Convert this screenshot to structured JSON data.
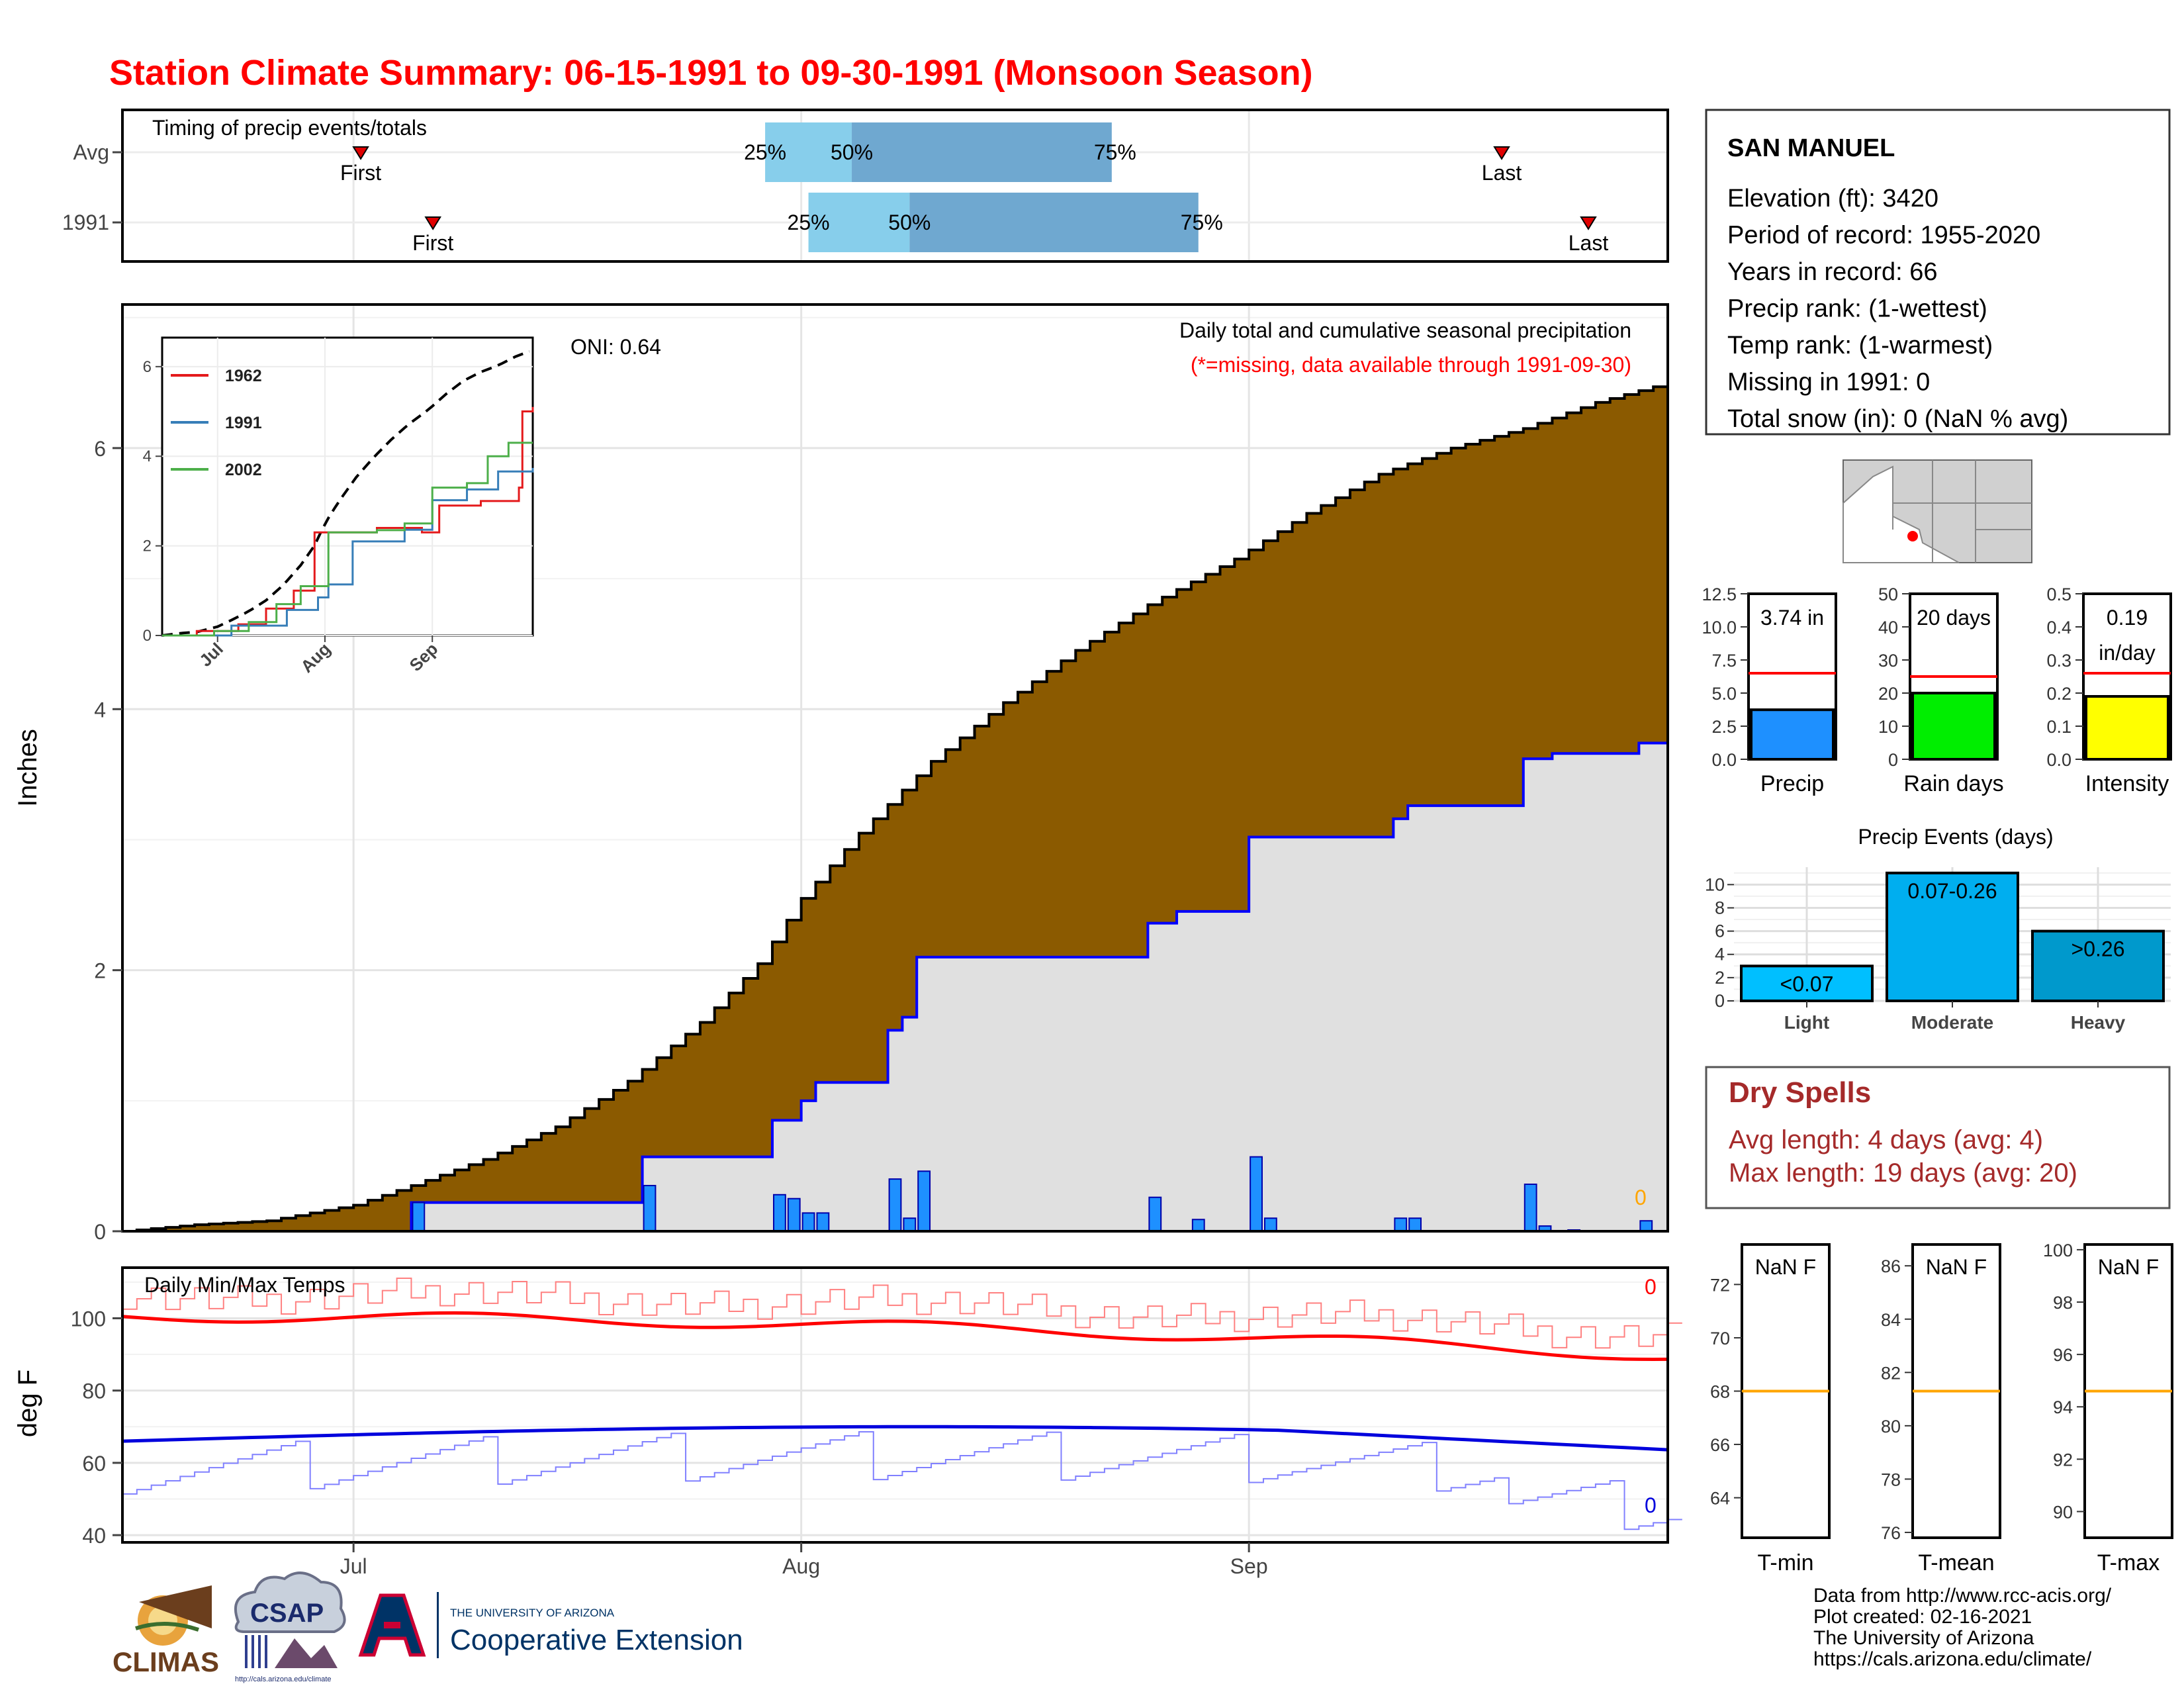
{
  "title": "Station Climate Summary: 06-15-1991 to 09-30-1991 (Monsoon Season)",
  "timing": {
    "panel_label": "Timing of precip events/totals",
    "rows": [
      {
        "label": "Avg",
        "first": "07-01",
        "q25": "07-29",
        "q50": "08-04",
        "q75": "08-22",
        "last": "09-18"
      },
      {
        "label": "1991",
        "first": "07-06",
        "q25": "08-01",
        "q50": "08-08",
        "q75": "08-28",
        "last": "09-24"
      }
    ],
    "first_label": "First",
    "last_label": "Last",
    "q25_label": "25%",
    "q50_label": "50%",
    "q75_label": "75%",
    "colors": {
      "light": "#87ceeb",
      "dark": "#6fa8d0",
      "marker": "#e00000"
    }
  },
  "precip_panel": {
    "ylabel": "Inches",
    "title": "Daily total and cumulative seasonal precipitation",
    "subtitle": "(*=missing, data available through 1991-09-30)",
    "oni": "ONI: 0.64",
    "missing_count": "0",
    "ylim": [
      0,
      7.1
    ],
    "yticks": [
      "0",
      "2",
      "4",
      "6"
    ],
    "colors": {
      "avg_fill": "#8b5a00",
      "obs_fill": "#e0e0e0",
      "obs_line": "#0000ff",
      "bar": "#1e90ff"
    }
  },
  "inset": {
    "yticks": [
      "0",
      "2",
      "4",
      "6"
    ],
    "xticks": [
      "Jul",
      "Aug",
      "Sep"
    ],
    "legend": [
      {
        "name": "1962",
        "color": "#e41a1c"
      },
      {
        "name": "1991",
        "color": "#377eb8"
      },
      {
        "name": "2002",
        "color": "#4daf4a"
      }
    ]
  },
  "temp_panel": {
    "ylabel": "deg F",
    "title": "Daily Min/Max Temps",
    "missing_max": "0",
    "missing_min": "0",
    "yticks": [
      "40",
      "60",
      "80",
      "100"
    ],
    "ylim": [
      38,
      114
    ],
    "colors": {
      "max_avg": "#ff0000",
      "min_avg": "#0000dd",
      "max_obs": "#ff8080",
      "min_obs": "#8080ff"
    }
  },
  "xaxis": {
    "ticks": [
      "Jul",
      "Aug",
      "Sep"
    ]
  },
  "station": {
    "name": "SAN MANUEL",
    "lines": [
      "Elevation (ft): 3420",
      "Period of record: 1955-2020",
      "Years in record: 66",
      "Precip rank:  (1-wettest)",
      "Temp rank:  (1-warmest)",
      "Missing in 1991: 0",
      "Total snow (in): 0 (NaN % avg)"
    ]
  },
  "mini_bars": [
    {
      "label": "Precip",
      "value_text": "3.74 in",
      "value": 3.74,
      "avg": 6.5,
      "ymax": 12.5,
      "ticks": [
        "0.0",
        "2.5",
        "5.0",
        "7.5",
        "10.0",
        "12.5"
      ],
      "color": "#1e90ff"
    },
    {
      "label": "Rain days",
      "value_text": "20 days",
      "value": 20,
      "avg": 25,
      "ymax": 50,
      "ticks": [
        "0",
        "10",
        "20",
        "30",
        "40",
        "50"
      ],
      "color": "#00ee00"
    },
    {
      "label": "Intensity",
      "value_text": "0.19",
      "value_text2": "in/day",
      "value": 0.19,
      "avg": 0.26,
      "ymax": 0.5,
      "ticks": [
        "0.0",
        "0.1",
        "0.2",
        "0.3",
        "0.4",
        "0.5"
      ],
      "color": "#ffff00"
    }
  ],
  "precip_events": {
    "title": "Precip Events (days)",
    "ymax": 11.5,
    "ticks": [
      "0",
      "2",
      "4",
      "6",
      "8",
      "10"
    ],
    "bars": [
      {
        "category": "Light",
        "label": "<0.07",
        "value": 3,
        "color": "#00bfff"
      },
      {
        "category": "Moderate",
        "label": "0.07-0.26",
        "value": 11,
        "color": "#00aeef"
      },
      {
        "category": "Heavy",
        "label": ">0.26",
        "value": 6,
        "color": "#0099cc"
      }
    ]
  },
  "dry_spells": {
    "title": "Dry Spells",
    "avg_length": "Avg length: 4 days (avg: 4)",
    "max_length": "Max length: 19 days (avg: 20)",
    "color": "#a52a2a"
  },
  "temp_boxes": [
    {
      "label": "T-min",
      "value_text": "NaN F",
      "ticks": [
        "64",
        "66",
        "68",
        "70",
        "72"
      ],
      "tmin": 62.5,
      "tmax": 73.5,
      "avg": 68
    },
    {
      "label": "T-mean",
      "value_text": "NaN F",
      "ticks": [
        "76",
        "78",
        "80",
        "82",
        "84",
        "86"
      ],
      "tmin": 75.8,
      "tmax": 86.8,
      "avg": 81.3
    },
    {
      "label": "T-max",
      "value_text": "NaN F",
      "ticks": [
        "90",
        "92",
        "94",
        "96",
        "98",
        "100"
      ],
      "tmin": 89,
      "tmax": 100.2,
      "avg": 94.6
    }
  ],
  "footer": {
    "lines": [
      "Data from http://www.rcc-acis.org/",
      "Plot created: 02-16-2021",
      "The University of Arizona",
      "https://cals.arizona.edu/climate/"
    ],
    "logo_climas": "CLIMAS",
    "logo_csap": "CSAP",
    "logo_csap_url": "http://cals.arizona.edu/climate",
    "logo_ua_small": "THE UNIVERSITY OF ARIZONA",
    "logo_ua_big": "Cooperative Extension"
  },
  "chart_data": {
    "type": "area",
    "title": "Daily total and cumulative seasonal precipitation",
    "ylabel": "Inches",
    "ylim": [
      0,
      7.1
    ],
    "x_range": [
      "06-15",
      "09-30"
    ],
    "avg_cumulative": {
      "dates": [
        "06-15",
        "06-20",
        "06-25",
        "07-01",
        "07-05",
        "07-10",
        "07-15",
        "07-20",
        "07-25",
        "07-29",
        "08-01",
        "08-05",
        "08-10",
        "08-15",
        "08-20",
        "08-25",
        "08-31",
        "09-05",
        "09-10",
        "09-15",
        "09-20",
        "09-25",
        "09-30"
      ],
      "values": [
        0.0,
        0.05,
        0.08,
        0.2,
        0.35,
        0.55,
        0.8,
        1.15,
        1.6,
        2.05,
        2.55,
        3.05,
        3.6,
        4.05,
        4.45,
        4.8,
        5.15,
        5.5,
        5.8,
        6.0,
        6.15,
        6.35,
        6.5
      ]
    },
    "obs_1991_cumulative": {
      "dates": [
        "06-15",
        "07-04",
        "07-05",
        "07-20",
        "07-21",
        "07-29",
        "07-30",
        "08-01",
        "08-02",
        "08-03",
        "08-07",
        "08-08",
        "08-09",
        "08-14",
        "08-24",
        "08-25",
        "08-27",
        "08-28",
        "09-01",
        "09-02",
        "09-11",
        "09-12",
        "09-19",
        "09-20",
        "09-22",
        "09-23",
        "09-28",
        "09-30"
      ],
      "values": [
        0.0,
        0.0,
        0.22,
        0.22,
        0.57,
        0.57,
        0.85,
        1.0,
        1.14,
        1.14,
        1.54,
        1.64,
        2.1,
        2.1,
        2.1,
        2.36,
        2.45,
        2.45,
        3.02,
        3.02,
        3.16,
        3.26,
        3.26,
        3.62,
        3.66,
        3.66,
        3.74,
        3.74
      ]
    },
    "daily_1991": {
      "dates": [
        "07-05",
        "07-21",
        "07-30",
        "07-31",
        "08-01",
        "08-02",
        "08-03",
        "08-07",
        "08-08",
        "08-09",
        "08-25",
        "08-28",
        "09-01",
        "09-02",
        "09-11",
        "09-12",
        "09-20",
        "09-21",
        "09-23",
        "09-28"
      ],
      "values": [
        0.22,
        0.35,
        0.28,
        0.25,
        0.14,
        0.14,
        0.0,
        0.4,
        0.1,
        0.46,
        0.26,
        0.09,
        0.57,
        0.1,
        0.1,
        0.1,
        0.36,
        0.04,
        0.01,
        0.08
      ]
    },
    "onset": "ONI: 0.64"
  }
}
